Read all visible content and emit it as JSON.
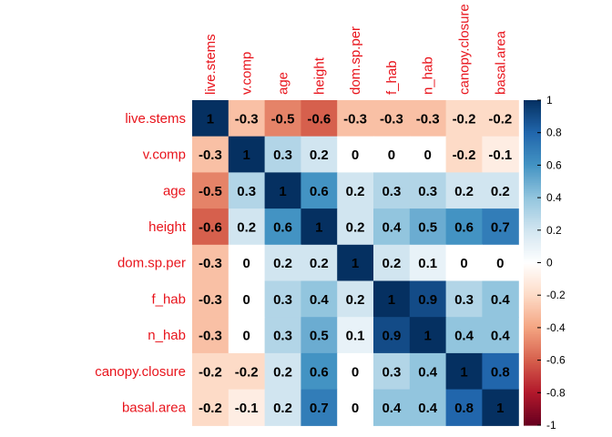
{
  "chart_data": {
    "type": "heatmap",
    "variables": [
      "live.stems",
      "v.comp",
      "age",
      "height",
      "dom.sp.per",
      "f_hab",
      "n_hab",
      "canopy.closure",
      "basal.area"
    ],
    "matrix": [
      [
        1,
        -0.3,
        -0.5,
        -0.6,
        -0.3,
        -0.3,
        -0.3,
        -0.2,
        -0.2
      ],
      [
        -0.3,
        1,
        0.3,
        0.2,
        0,
        0,
        0,
        -0.2,
        -0.1
      ],
      [
        -0.5,
        0.3,
        1,
        0.6,
        0.2,
        0.3,
        0.3,
        0.2,
        0.2
      ],
      [
        -0.6,
        0.2,
        0.6,
        1,
        0.2,
        0.4,
        0.5,
        0.6,
        0.7
      ],
      [
        -0.3,
        0,
        0.2,
        0.2,
        1,
        0.2,
        0.1,
        0,
        0
      ],
      [
        -0.3,
        0,
        0.3,
        0.4,
        0.2,
        1,
        0.9,
        0.3,
        0.4
      ],
      [
        -0.3,
        0,
        0.3,
        0.5,
        0.1,
        0.9,
        1,
        0.4,
        0.4
      ],
      [
        -0.2,
        -0.2,
        0.2,
        0.6,
        0,
        0.3,
        0.4,
        1,
        0.8
      ],
      [
        -0.2,
        -0.1,
        0.2,
        0.7,
        0,
        0.4,
        0.4,
        0.8,
        1
      ]
    ],
    "colorbar": {
      "range": [
        -1,
        1
      ],
      "ticks": [
        "1",
        "0.8",
        "0.6",
        "0.4",
        "0.2",
        "0",
        "-0.2",
        "-0.4",
        "-0.6",
        "-0.8",
        "-1"
      ]
    },
    "colors": {
      "label": "#e8141c",
      "negative_end": "#67001f",
      "positive_end": "#053061",
      "mid": "#ffffff"
    },
    "grid": false
  }
}
